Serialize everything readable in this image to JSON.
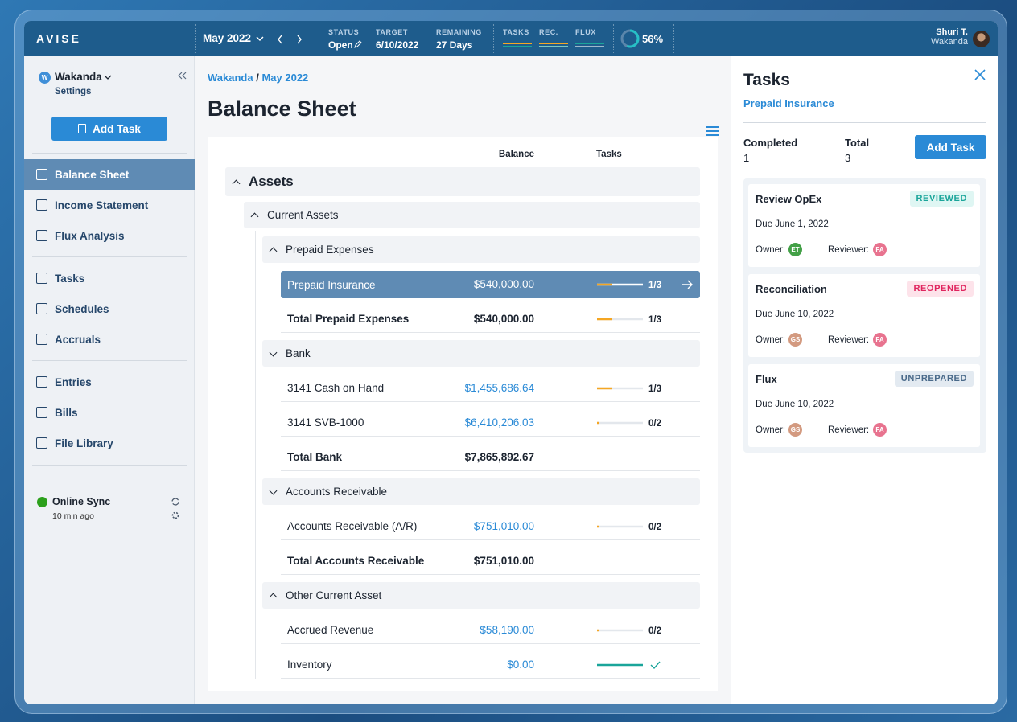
{
  "topbar": {
    "brand": "AVISE",
    "period": "May 2022",
    "status": {
      "label": "STATUS",
      "value": "Open"
    },
    "target": {
      "label": "TARGET",
      "value": "6/10/2022"
    },
    "remaining": {
      "label": "REMAINING",
      "value": "27 Days"
    },
    "metrics": [
      "TASKS",
      "REC.",
      "FLUX"
    ],
    "progress": {
      "value": 56,
      "label": "56%"
    },
    "user": {
      "name": "Shuri T.",
      "org": "Wakanda"
    }
  },
  "sidebar": {
    "org": "Wakanda",
    "settings": "Settings",
    "add_task": "Add Task",
    "nav": [
      [
        "Balance Sheet",
        "Income Statement",
        "Flux Analysis"
      ],
      [
        "Tasks",
        "Schedules",
        "Accruals"
      ],
      [
        "Entries",
        "Bills",
        "File Library"
      ]
    ],
    "sync": {
      "title": "Online Sync",
      "time": "10 min ago"
    }
  },
  "main": {
    "breadcrumb": [
      "Wakanda",
      "May 2022"
    ],
    "title": "Balance Sheet",
    "columns": [
      "Balance",
      "Tasks"
    ],
    "tree": [
      {
        "name": "Assets",
        "groups": [
          {
            "name": "Current Assets",
            "groups": [
              {
                "name": "Prepaid Expenses",
                "rows": [
                  {
                    "name": "Prepaid Insurance",
                    "balance": "$540,000.00",
                    "tasks": "1/3",
                    "selected": true
                  }
                ],
                "total": {
                  "name": "Total Prepaid Expenses",
                  "balance": "$540,000.00",
                  "tasks": "1/3"
                }
              },
              {
                "name": "Bank",
                "rows": [
                  {
                    "name": "3141 Cash on Hand",
                    "balance": "$1,455,686.64",
                    "tasks": "1/3"
                  },
                  {
                    "name": "3141 SVB-1000",
                    "balance": "$6,410,206.03",
                    "tasks": "0/2"
                  }
                ],
                "total": {
                  "name": "Total Bank",
                  "balance": "$7,865,892.67"
                }
              },
              {
                "name": "Accounts Receivable",
                "rows": [
                  {
                    "name": "Accounts Receivable (A/R)",
                    "balance": "$751,010.00",
                    "tasks": "0/2"
                  }
                ],
                "total": {
                  "name": "Total Accounts Receivable",
                  "balance": "$751,010.00"
                }
              },
              {
                "name": "Other Current Asset",
                "rows": [
                  {
                    "name": "Accrued Revenue",
                    "balance": "$58,190.00",
                    "tasks": "0/2"
                  },
                  {
                    "name": "Inventory",
                    "balance": "$0.00",
                    "complete": true
                  }
                ]
              }
            ]
          }
        ]
      }
    ]
  },
  "tasks_panel": {
    "title": "Tasks",
    "subtitle": "Prepaid Insurance",
    "completed": {
      "label": "Completed",
      "value": "1"
    },
    "total": {
      "label": "Total",
      "value": "3"
    },
    "add_task": "Add Task",
    "cards": [
      {
        "name": "Review OpEx",
        "status": "REVIEWED",
        "due": "Due June 1, 2022",
        "owner_label": "Owner:",
        "owner": "ET",
        "owner_color": "#43a047",
        "reviewer_label": "Reviewer:",
        "reviewer": "FA",
        "reviewer_color": "#e8738f"
      },
      {
        "name": "Reconciliation",
        "status": "REOPENED",
        "due": "Due June 10, 2022",
        "owner_label": "Owner:",
        "owner": "GS",
        "owner_color": "#d39a80",
        "reviewer_label": "Reviewer:",
        "reviewer": "FA",
        "reviewer_color": "#e8738f"
      },
      {
        "name": "Flux",
        "status": "UNPREPARED",
        "due": "Due June 10, 2022",
        "owner_label": "Owner:",
        "owner": "GS",
        "owner_color": "#d39a80",
        "reviewer_label": "Reviewer:",
        "reviewer": "FA",
        "reviewer_color": "#e8738f"
      }
    ]
  }
}
